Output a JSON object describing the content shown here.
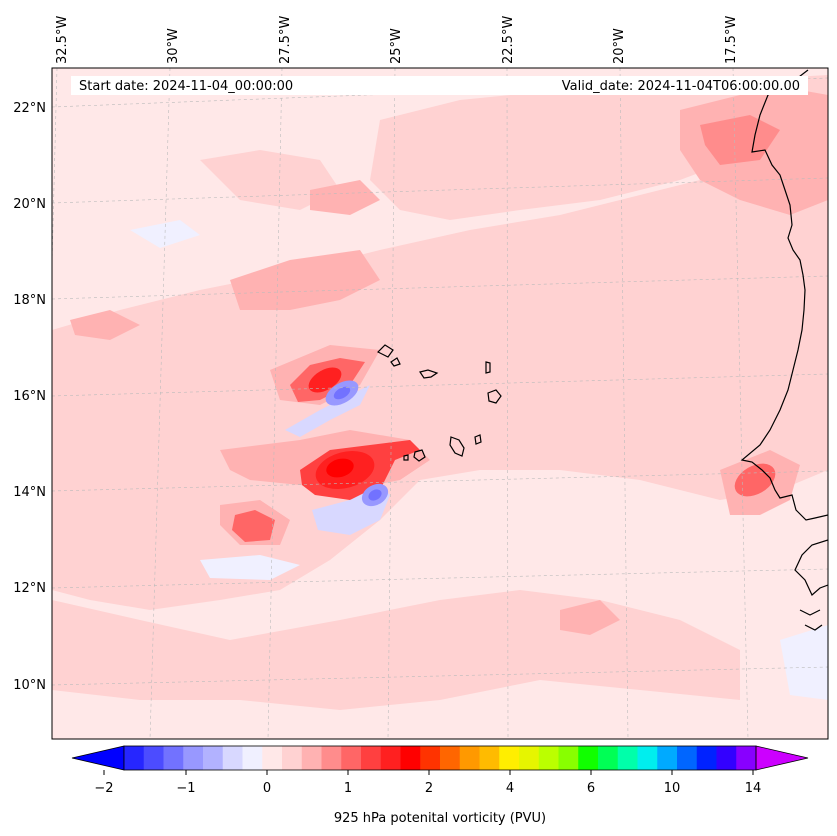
{
  "header": {
    "start_date": "Start date: 2024-11-04_00:00:00",
    "valid_date": "Valid_date: 2024-11-04T06:00:00.00"
  },
  "map": {
    "longitude_labels": [
      "32.5°W",
      "30°W",
      "27.5°W",
      "25°W",
      "22.5°W",
      "20°W",
      "17.5°W"
    ],
    "latitude_labels": [
      "22°N",
      "20°N",
      "18°N",
      "16°N",
      "14°N",
      "12°N",
      "10°N"
    ],
    "gridlines": true,
    "coastlines": true
  },
  "colorbar": {
    "title": "925 hPa potenital vorticity (PVU)",
    "tick_labels": [
      "−2",
      "−1",
      "0",
      "1",
      "2",
      "4",
      "6",
      "10",
      "14"
    ],
    "extend": "both",
    "colors": [
      "#0000ff",
      "#2626ff",
      "#4c4cff",
      "#7272ff",
      "#9898ff",
      "#b2b2ff",
      "#d8d8ff",
      "#f0f0ff",
      "#ffe8e8",
      "#ffd2d2",
      "#ffb2b2",
      "#ff8c8c",
      "#ff6666",
      "#ff4040",
      "#ff2020",
      "#ff0000",
      "#ff3300",
      "#ff6600",
      "#ff9900",
      "#ffbb00",
      "#ffee00",
      "#e6f500",
      "#bbff00",
      "#88ff00",
      "#11ff00",
      "#00ff55",
      "#00ffaa",
      "#00eeee",
      "#00aaff",
      "#0066ff",
      "#0022ff",
      "#3300ff",
      "#8800ff",
      "#cc00ff"
    ]
  }
}
